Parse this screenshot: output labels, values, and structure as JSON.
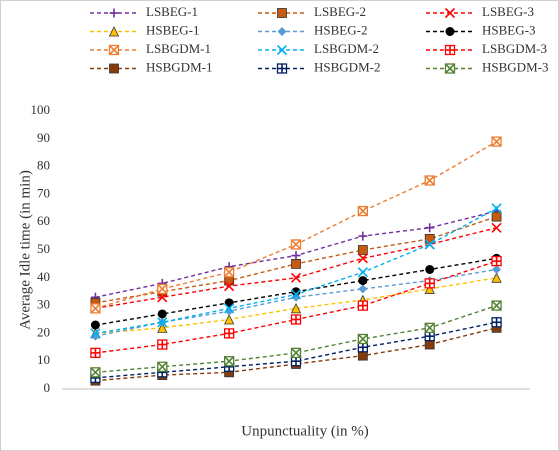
{
  "chart_data": {
    "type": "line",
    "y_label": "Average Idle time (in min)",
    "x_label": "Unpunctuality (in %)",
    "categories": [
      null,
      null,
      null,
      null,
      null,
      null,
      null
    ],
    "ylim": [
      0,
      100
    ],
    "yticks": [
      0,
      10,
      20,
      30,
      40,
      50,
      60,
      70,
      80,
      90,
      100
    ],
    "grid": false,
    "legend": "top",
    "series": [
      {
        "name": "LSBEG-1",
        "color": "#7030a0",
        "marker": "plus",
        "values": [
          33,
          38,
          44,
          48,
          55,
          58,
          64
        ]
      },
      {
        "name": "LSBEG-2",
        "color": "#c55a11",
        "marker": "square",
        "values": [
          31,
          35,
          39,
          45,
          50,
          54,
          62
        ]
      },
      {
        "name": "LSBEG-3",
        "color": "#ff0000",
        "marker": "x",
        "values": [
          29,
          33,
          37,
          40,
          47,
          52,
          58
        ]
      },
      {
        "name": "HSBEG-1",
        "color": "#ffc000",
        "marker": "triangle",
        "values": [
          20,
          22,
          25,
          29,
          32,
          36,
          40
        ]
      },
      {
        "name": "HSBEG-2",
        "color": "#5b9bd5",
        "marker": "diamond",
        "values": [
          19,
          24,
          28,
          33,
          36,
          39,
          43
        ]
      },
      {
        "name": "HSBEG-3",
        "color": "#000000",
        "marker": "circle",
        "values": [
          23,
          27,
          31,
          35,
          39,
          43,
          47
        ]
      },
      {
        "name": "LSBGDM-1",
        "color": "#ed7d31",
        "marker": "xsquare",
        "values": [
          29,
          36,
          42,
          52,
          64,
          75,
          89
        ]
      },
      {
        "name": "LSBGDM-2",
        "color": "#00b0f0",
        "marker": "x",
        "values": [
          20,
          24,
          29,
          34,
          42,
          52,
          65
        ]
      },
      {
        "name": "LSBGDM-3",
        "color": "#ff0000",
        "marker": "plussquare",
        "values": [
          13,
          16,
          20,
          25,
          30,
          38,
          46
        ]
      },
      {
        "name": "HSBGDM-1",
        "color": "#843c0c",
        "marker": "square",
        "values": [
          3,
          5,
          6,
          9,
          12,
          16,
          22
        ]
      },
      {
        "name": "HSBGDM-2",
        "color": "#002060",
        "marker": "plussquare",
        "values": [
          4,
          6,
          8,
          10,
          15,
          19,
          24
        ]
      },
      {
        "name": "HSBGDM-3",
        "color": "#548235",
        "marker": "xsquare",
        "values": [
          6,
          8,
          10,
          13,
          18,
          22,
          30
        ]
      }
    ]
  }
}
